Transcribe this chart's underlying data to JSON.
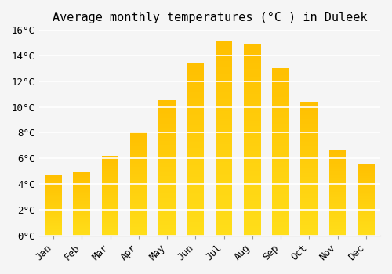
{
  "title": "Average monthly temperatures (°C ) in Duleek",
  "months": [
    "Jan",
    "Feb",
    "Mar",
    "Apr",
    "May",
    "Jun",
    "Jul",
    "Aug",
    "Sep",
    "Oct",
    "Nov",
    "Dec"
  ],
  "values": [
    4.7,
    4.9,
    6.2,
    8.0,
    10.5,
    13.4,
    15.1,
    14.9,
    13.0,
    10.4,
    6.7,
    5.6
  ],
  "bar_color_top": "#FFC107",
  "bar_color_bottom": "#FFD966",
  "ylim": [
    0,
    16
  ],
  "yticks": [
    0,
    2,
    4,
    6,
    8,
    10,
    12,
    14,
    16
  ],
  "ytick_labels": [
    "0°C",
    "2°C",
    "4°C",
    "6°C",
    "8°C",
    "10°C",
    "12°C",
    "14°C",
    "16°C"
  ],
  "background_color": "#f5f5f5",
  "grid_color": "#ffffff",
  "title_fontsize": 11,
  "tick_fontsize": 9,
  "bar_edge_color": "none"
}
